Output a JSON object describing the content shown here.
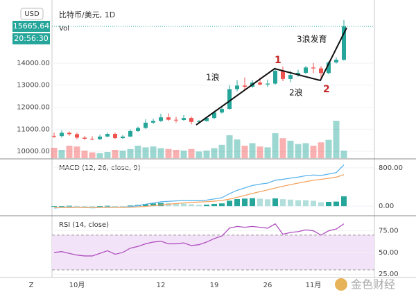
{
  "header": {
    "currency": "USD",
    "title": "比特币/美元, 1D",
    "volume_label": "Vol"
  },
  "chart_data": [
    {
      "type": "candlestick",
      "categories": [
        null,
        null,
        null,
        "10月",
        null,
        null,
        null,
        null,
        null,
        null,
        null,
        null,
        null,
        null,
        "12",
        null,
        null,
        null,
        null,
        null,
        null,
        "19",
        null,
        null,
        null,
        null,
        null,
        null,
        "26",
        null,
        null,
        null,
        null,
        null,
        "11月",
        null,
        null,
        null,
        null
      ],
      "open": [
        10700,
        10690,
        10840,
        10780,
        10620,
        10570,
        10550,
        10670,
        10790,
        10600,
        10670,
        10920,
        11060,
        11300,
        11380,
        11540,
        11430,
        11420,
        11510,
        11330,
        11370,
        11510,
        11760,
        11920,
        12820,
        12980,
        12930,
        13120,
        13030,
        13070,
        13650,
        13280,
        13460,
        13560,
        13800,
        13760,
        13550,
        14030,
        14150
      ],
      "high": [
        10850,
        10950,
        10900,
        10850,
        10700,
        10680,
        10750,
        10850,
        10850,
        10740,
        10990,
        11120,
        11450,
        11480,
        11700,
        11720,
        11560,
        11640,
        11580,
        11420,
        11570,
        11840,
        12010,
        13000,
        13230,
        13350,
        13230,
        13340,
        13250,
        13790,
        13850,
        13640,
        13700,
        13870,
        14000,
        13860,
        14080,
        14260,
        15950
      ],
      "low": [
        10600,
        10620,
        10700,
        10550,
        10520,
        10500,
        10520,
        10640,
        10560,
        10560,
        10650,
        10880,
        11020,
        11240,
        11330,
        11380,
        11300,
        11380,
        11220,
        11250,
        11350,
        11460,
        11710,
        11890,
        12720,
        12800,
        12880,
        12990,
        12920,
        13020,
        13180,
        13130,
        13380,
        13500,
        13550,
        13320,
        13490,
        13980,
        14110
      ],
      "close": [
        10690,
        10840,
        10780,
        10620,
        10570,
        10550,
        10670,
        10790,
        10600,
        10670,
        10920,
        11060,
        11300,
        11380,
        11540,
        11430,
        11420,
        11510,
        11330,
        11370,
        11510,
        11760,
        11920,
        12820,
        12980,
        12930,
        13120,
        13030,
        13070,
        13650,
        13280,
        13460,
        13560,
        13800,
        13760,
        13550,
        14030,
        14150,
        15665.64
      ],
      "last_price_label": "15665.64",
      "countdown": "20:56:30",
      "up_color": "#26a69a",
      "down_color": "#ef5350",
      "ylim": [
        9690,
        16860
      ],
      "yticks": [
        {
          "value": 10000,
          "label": "10000.00"
        },
        {
          "value": 11000,
          "label": "11000.00"
        },
        {
          "value": 12000,
          "label": "12000.00"
        },
        {
          "value": 13000,
          "label": "13000.00"
        },
        {
          "value": 14000,
          "label": "14000.00"
        }
      ],
      "grid": true,
      "volume": [
        25,
        20,
        30,
        28,
        18,
        14,
        12,
        15,
        20,
        18,
        22,
        30,
        26,
        28,
        24,
        22,
        20,
        18,
        22,
        16,
        18,
        24,
        32,
        55,
        45,
        30,
        36,
        28,
        26,
        60,
        48,
        42,
        34,
        36,
        30,
        38,
        44,
        90,
        18
      ],
      "volume_ylim": [
        0,
        100
      ],
      "annotations": [
        {
          "text": "1浪",
          "color": "#111111"
        },
        {
          "text": "1",
          "color": "#c62828"
        },
        {
          "text": "2浪",
          "color": "#111111"
        },
        {
          "text": "2",
          "color": "#c62828"
        },
        {
          "text": "3浪发育",
          "color": "#111111"
        }
      ]
    },
    {
      "type": "line",
      "title": "MACD (12, 26, close, 9)",
      "series": [
        {
          "name": "MACD",
          "color": "#5ab4ec",
          "values": [
            -40,
            -30,
            -20,
            -25,
            -30,
            -35,
            -30,
            -20,
            -25,
            -25,
            -10,
            10,
            40,
            65,
            90,
            100,
            110,
            120,
            115,
            115,
            125,
            150,
            175,
            260,
            330,
            380,
            430,
            460,
            480,
            540,
            560,
            585,
            605,
            635,
            650,
            640,
            670,
            700,
            860
          ]
        },
        {
          "name": "Signal",
          "color": "#f4a460",
          "values": [
            -30,
            -30,
            -28,
            -27,
            -28,
            -29,
            -29,
            -27,
            -27,
            -26,
            -23,
            -16,
            -5,
            9,
            25,
            40,
            54,
            67,
            77,
            85,
            93,
            104,
            118,
            146,
            183,
            222,
            264,
            303,
            338,
            378,
            415,
            449,
            480,
            511,
            539,
            559,
            581,
            605,
            656
          ]
        }
      ],
      "histogram": [
        -10,
        0,
        8,
        2,
        -2,
        -6,
        -1,
        7,
        2,
        1,
        13,
        26,
        45,
        56,
        65,
        60,
        56,
        53,
        38,
        30,
        32,
        46,
        57,
        114,
        147,
        158,
        166,
        157,
        142,
        162,
        145,
        136,
        125,
        124,
        111,
        81,
        89,
        95,
        204
      ],
      "histogram_colors": [
        "#26a69a",
        "#b2dfdb"
      ],
      "ylim": [
        -186,
        957
      ],
      "yticks": [
        {
          "value": 800,
          "label": "800.00"
        },
        {
          "value": 0,
          "label": "0.00"
        }
      ]
    },
    {
      "type": "line",
      "title": "RSI (14, close)",
      "series": [
        {
          "name": "RSI",
          "color": "#b04fc0",
          "values": [
            50,
            51,
            49,
            47,
            46,
            46,
            49,
            52,
            48,
            50,
            55,
            57,
            60,
            62,
            63,
            60,
            60,
            61,
            58,
            59,
            62,
            66,
            69,
            78,
            80,
            79,
            80,
            79,
            78,
            83,
            71,
            73,
            74,
            76,
            75,
            70,
            75,
            77,
            83
          ]
        }
      ],
      "band": [
        30,
        70
      ],
      "band_color": "#f3e3f8",
      "ylim": [
        22,
        90.7
      ],
      "yticks": [
        {
          "value": 75,
          "label": "75.00"
        },
        {
          "value": 50,
          "label": "50.00"
        },
        {
          "value": 25,
          "label": "25.00"
        }
      ]
    }
  ],
  "footer": {
    "scale_button": "Z",
    "watermark": "金色财经"
  }
}
